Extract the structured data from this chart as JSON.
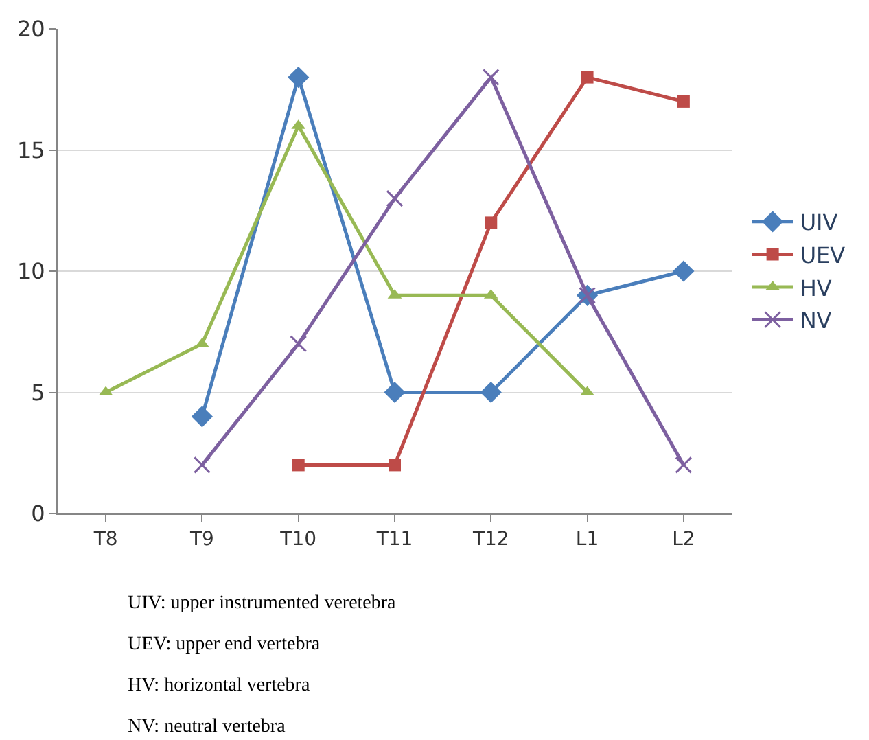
{
  "chart_data": {
    "type": "line",
    "categories": [
      "T8",
      "T9",
      "T10",
      "T11",
      "T12",
      "L1",
      "L2"
    ],
    "series": [
      {
        "name": "UIV",
        "color": "#4a7ebb",
        "marker": "diamond",
        "values": [
          null,
          4,
          18,
          5,
          5,
          9,
          10
        ]
      },
      {
        "name": "UEV",
        "color": "#be4b48",
        "marker": "square",
        "values": [
          null,
          null,
          2,
          2,
          12,
          18,
          17
        ]
      },
      {
        "name": "HV",
        "color": "#98b954",
        "marker": "triangle",
        "values": [
          5,
          7,
          16,
          9,
          9,
          5,
          null
        ]
      },
      {
        "name": "NV",
        "color": "#7d60a0",
        "marker": "cross",
        "values": [
          null,
          2,
          7,
          13,
          18,
          9,
          2
        ]
      }
    ],
    "ylim": [
      0,
      20
    ],
    "yticks": [
      0,
      5,
      10,
      15,
      20
    ],
    "grid": "y",
    "legend": "right",
    "annotations": [
      "UIV: upper instrumented veretebra",
      "UEV: upper end vertebra",
      "HV: horizontal vertebra",
      "NV: neutral vertebra"
    ]
  }
}
